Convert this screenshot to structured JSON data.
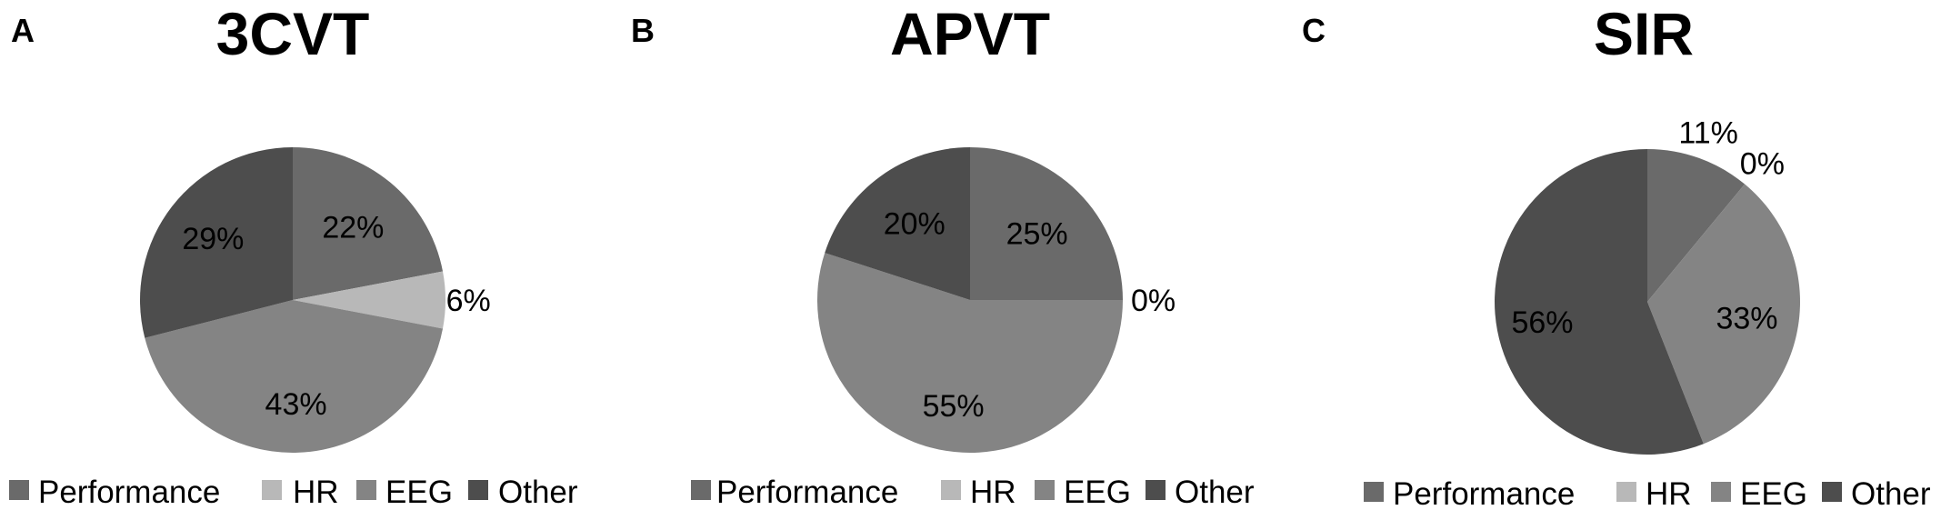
{
  "legend": [
    "Performance",
    "HR",
    "EEG",
    "Other"
  ],
  "colors": {
    "Performance": "#6a6a6a",
    "HR": "#b8b8b8",
    "EEG": "#848484",
    "Other": "#4d4d4d"
  },
  "chart_data": [
    {
      "type": "pie",
      "panel": "A",
      "title": "3CVT",
      "slices": [
        {
          "name": "Performance",
          "value": 22,
          "label": "22%"
        },
        {
          "name": "HR",
          "value": 6,
          "label": "6%"
        },
        {
          "name": "EEG",
          "value": 43,
          "label": "43%"
        },
        {
          "name": "Other",
          "value": 29,
          "label": "29%"
        }
      ]
    },
    {
      "type": "pie",
      "panel": "B",
      "title": "APVT",
      "slices": [
        {
          "name": "Performance",
          "value": 25,
          "label": "25%"
        },
        {
          "name": "HR",
          "value": 0,
          "label": "0%"
        },
        {
          "name": "EEG",
          "value": 55,
          "label": "55%"
        },
        {
          "name": "Other",
          "value": 20,
          "label": "20%"
        }
      ]
    },
    {
      "type": "pie",
      "panel": "C",
      "title": "SIR",
      "slices": [
        {
          "name": "Performance",
          "value": 11,
          "label": "11%"
        },
        {
          "name": "HR",
          "value": 0,
          "label": "0%"
        },
        {
          "name": "EEG",
          "value": 33,
          "label": "33%"
        },
        {
          "name": "Other",
          "value": 56,
          "label": "56%"
        }
      ]
    }
  ]
}
